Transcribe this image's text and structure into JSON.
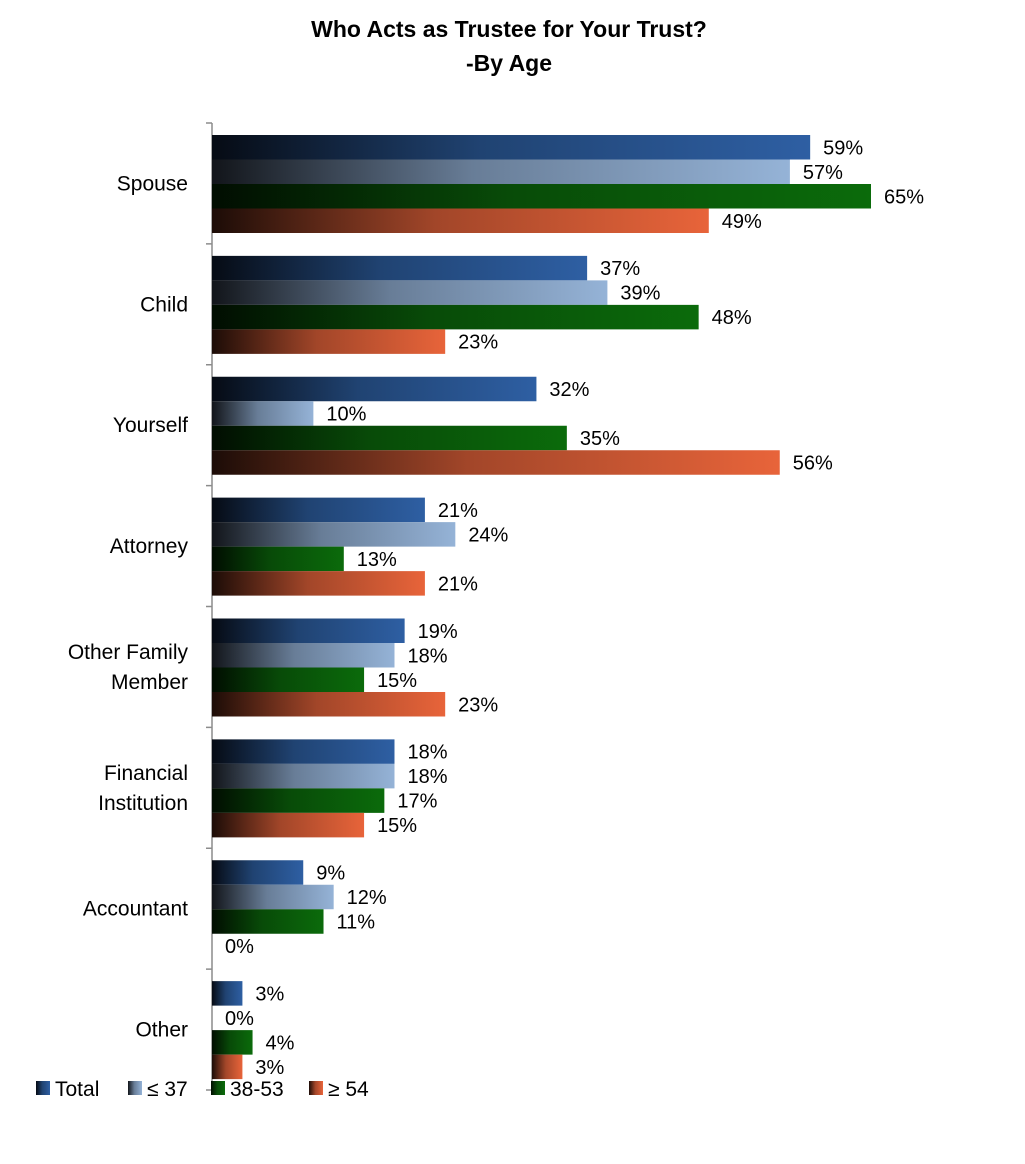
{
  "chart_data": {
    "type": "bar",
    "orientation": "horizontal",
    "title": "Who Acts as Trustee for Your Trust?",
    "subtitle": "-By Age",
    "categories": [
      "Spouse",
      "Child",
      "Yourself",
      "Attorney",
      "Other Family Member",
      "Financial Institution",
      "Accountant",
      "Other"
    ],
    "category_lines": [
      [
        "Spouse"
      ],
      [
        "Child"
      ],
      [
        "Yourself"
      ],
      [
        "Attorney"
      ],
      [
        "Other Family",
        "Member"
      ],
      [
        "Financial",
        "Institution"
      ],
      [
        "Accountant"
      ],
      [
        "Other"
      ]
    ],
    "series": [
      {
        "name": "Total",
        "values": [
          59,
          37,
          32,
          21,
          19,
          18,
          9,
          3
        ],
        "color": "#2e5fa3"
      },
      {
        "name": "≤ 37",
        "values": [
          57,
          39,
          10,
          24,
          18,
          18,
          12,
          0
        ],
        "color": "#95b3d7"
      },
      {
        "name": "38-53",
        "values": [
          65,
          48,
          35,
          13,
          15,
          17,
          11,
          4
        ],
        "color": "#0b6b0b"
      },
      {
        "name": "≥ 54",
        "values": [
          49,
          23,
          56,
          21,
          23,
          15,
          0,
          3
        ],
        "color": "#e8643a"
      }
    ],
    "value_suffix": "%",
    "xlim": [
      0,
      100
    ],
    "grid": false,
    "legend_position": "bottom-left"
  }
}
